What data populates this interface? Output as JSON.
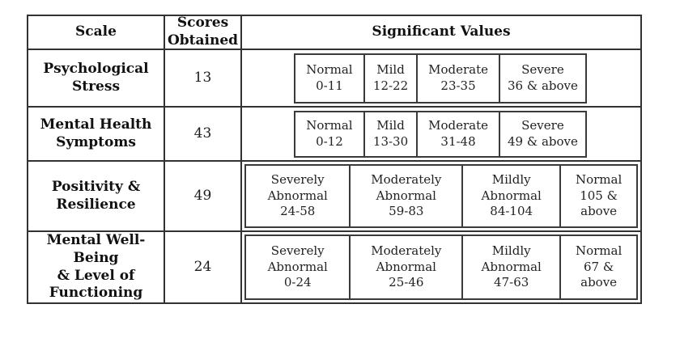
{
  "table": {
    "headers": {
      "scale": "Scale",
      "scores": "Scores\nObtained",
      "significant": "Significant Values"
    },
    "rows": [
      {
        "scale": "Psychological\nStress",
        "score": "13",
        "bands": [
          "Normal\n0-11",
          "Mild\n12-22",
          "Moderate\n23-35",
          "Severe\n36 & above"
        ]
      },
      {
        "scale": "Mental Health\nSymptoms",
        "score": "43",
        "bands": [
          "Normal\n0-12",
          "Mild\n13-30",
          "Moderate\n31-48",
          "Severe\n49 & above"
        ]
      },
      {
        "scale": "Positivity &\nResilience",
        "score": "49",
        "bands": [
          "Severely\nAbnormal\n24-58",
          "Moderately\nAbnormal\n59-83",
          "Mildly\nAbnormal\n84-104",
          "Normal\n105 &\nabove"
        ]
      },
      {
        "scale": "Mental Well-Being\n& Level of\nFunctioning",
        "score": "24",
        "bands": [
          "Severely\nAbnormal\n0-24",
          "Moderately\nAbnormal\n25-46",
          "Mildly\nAbnormal\n47-63",
          "Normal\n67 &\nabove"
        ]
      }
    ],
    "colors": {
      "border": "#323232",
      "text": "#1c1c1c",
      "background": "#ffffff"
    }
  }
}
